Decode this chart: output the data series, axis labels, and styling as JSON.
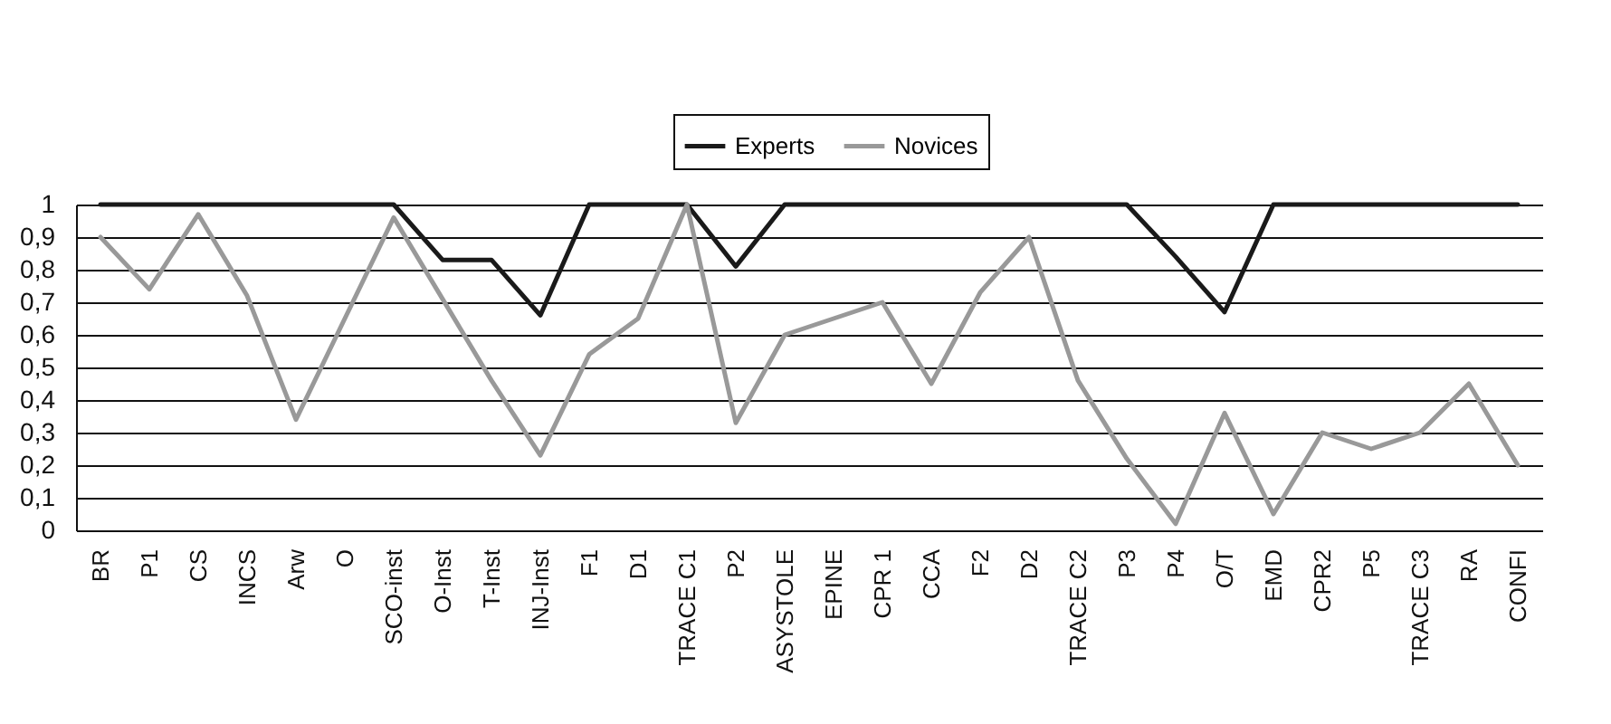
{
  "chart_data": {
    "type": "line",
    "categories": [
      "BR",
      "P1",
      "CS",
      "INCS",
      "Arw",
      "O",
      "SCO-inst",
      "O-Inst",
      "T-Inst",
      "INJ-Inst",
      "F1",
      "D1",
      "TRACE C1",
      "P2",
      "ASYSTOLE",
      "EPINE",
      "CPR 1",
      "CCA",
      "F2",
      "D2",
      "TRACE C2",
      "P3",
      "P4",
      "O/T",
      "EMD",
      "CPR2",
      "P5",
      "TRACE C3",
      "RA",
      "CONFI"
    ],
    "series": [
      {
        "name": "Experts",
        "color": "#1a1a1a",
        "values": [
          1,
          1,
          1,
          1,
          1,
          1,
          1,
          0.83,
          0.83,
          0.66,
          1,
          1,
          1,
          0.81,
          1,
          1,
          1,
          1,
          1,
          1,
          1,
          1,
          0.84,
          0.67,
          1,
          1,
          1,
          1,
          1,
          1
        ]
      },
      {
        "name": "Novices",
        "color": "#999999",
        "values": [
          0.9,
          0.74,
          0.97,
          0.72,
          0.34,
          0.65,
          0.96,
          0.71,
          0.46,
          0.23,
          0.54,
          0.65,
          1,
          0.33,
          0.6,
          0.65,
          0.7,
          0.45,
          0.73,
          0.9,
          0.46,
          0.22,
          0.02,
          0.36,
          0.05,
          0.3,
          0.25,
          0.3,
          0.45,
          0.2
        ]
      }
    ],
    "ylim": [
      0,
      1
    ],
    "yticks": [
      0,
      {
        "value": 0.1,
        "label": "0,1"
      },
      {
        "value": 0.2,
        "label": "0,2"
      },
      {
        "value": 0.3,
        "label": "0,3"
      },
      {
        "value": 0.4,
        "label": "0,4"
      },
      {
        "value": 0.5,
        "label": "0,5"
      },
      {
        "value": 0.6,
        "label": "0,6"
      },
      {
        "value": 0.7,
        "label": "0,7"
      },
      {
        "value": 0.8,
        "label": "0,8"
      },
      {
        "value": 0.9,
        "label": "0,9"
      },
      1
    ],
    "grid": "y",
    "legend": "top",
    "marker": "none",
    "line_style": "solid"
  }
}
